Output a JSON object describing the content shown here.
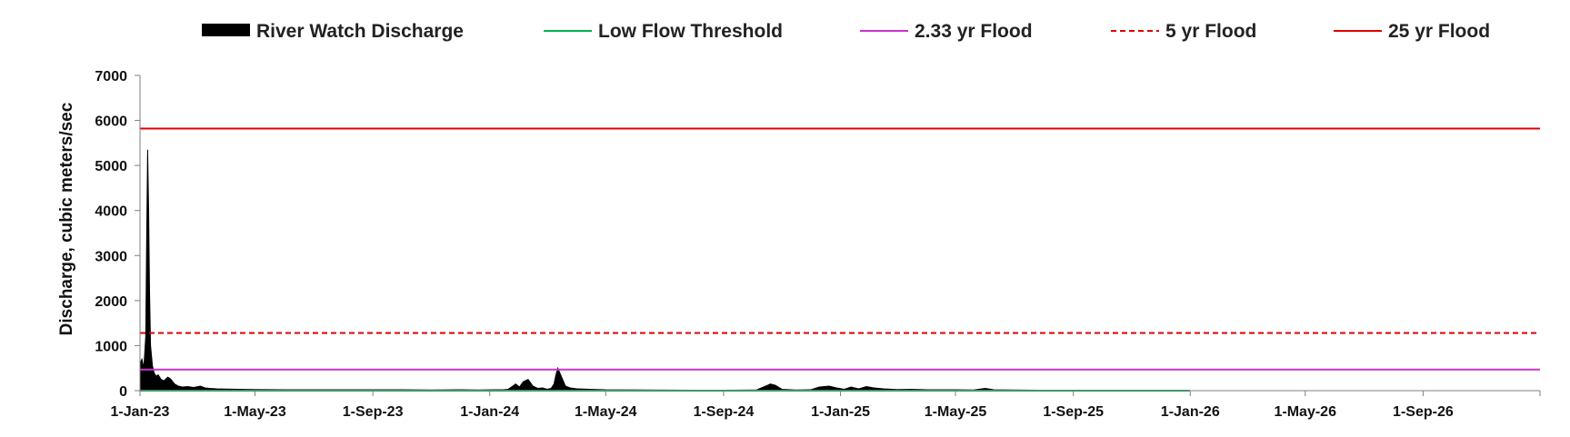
{
  "chart_data": {
    "type": "area",
    "title": "",
    "xlabel": "",
    "ylabel": "Discharge, cubic meters/sec",
    "ylim": [
      0,
      7000
    ],
    "yticks": [
      0,
      1000,
      2000,
      3000,
      4000,
      5000,
      6000,
      7000
    ],
    "xlim": [
      "2023-01-01",
      "2026-12-31"
    ],
    "xtick_labels": [
      "1-Jan-23",
      "1-May-23",
      "1-Sep-23",
      "1-Jan-24",
      "1-May-24",
      "1-Sep-24",
      "1-Jan-25",
      "1-May-25",
      "1-Sep-25",
      "1-Jan-26",
      "1-May-26",
      "1-Sep-26"
    ],
    "xtick_dates": [
      "2023-01-01",
      "2023-05-01",
      "2023-09-01",
      "2024-01-01",
      "2024-05-01",
      "2024-09-01",
      "2025-01-01",
      "2025-05-01",
      "2025-09-01",
      "2026-01-01",
      "2026-05-01",
      "2026-09-01"
    ],
    "grid": false,
    "legend_position": "top",
    "series": [
      {
        "name": "River Watch Discharge",
        "style": "area",
        "color": "#000000",
        "x": [
          "2023-01-01",
          "2023-01-03",
          "2023-01-05",
          "2023-01-07",
          "2023-01-08",
          "2023-01-09",
          "2023-01-10",
          "2023-01-11",
          "2023-01-12",
          "2023-01-14",
          "2023-01-16",
          "2023-01-18",
          "2023-01-20",
          "2023-01-23",
          "2023-01-26",
          "2023-01-30",
          "2023-02-02",
          "2023-02-06",
          "2023-02-10",
          "2023-02-14",
          "2023-02-20",
          "2023-02-26",
          "2023-03-05",
          "2023-03-10",
          "2023-03-15",
          "2023-03-22",
          "2023-04-01",
          "2023-04-15",
          "2023-05-01",
          "2023-06-01",
          "2023-07-01",
          "2023-08-01",
          "2023-09-01",
          "2023-10-01",
          "2023-11-01",
          "2023-12-01",
          "2023-12-20",
          "2024-01-05",
          "2024-01-10",
          "2024-01-15",
          "2024-01-20",
          "2024-01-25",
          "2024-01-28",
          "2024-02-01",
          "2024-02-05",
          "2024-02-10",
          "2024-02-15",
          "2024-02-20",
          "2024-02-25",
          "2024-03-01",
          "2024-03-05",
          "2024-03-08",
          "2024-03-10",
          "2024-03-12",
          "2024-03-15",
          "2024-03-20",
          "2024-03-25",
          "2024-04-01",
          "2024-04-15",
          "2024-05-01",
          "2024-06-15",
          "2024-08-01",
          "2024-09-01",
          "2024-10-05",
          "2024-10-15",
          "2024-10-20",
          "2024-10-25",
          "2024-11-01",
          "2024-11-15",
          "2024-12-01",
          "2024-12-10",
          "2024-12-20",
          "2024-12-28",
          "2025-01-05",
          "2025-01-12",
          "2025-01-20",
          "2025-01-28",
          "2025-02-05",
          "2025-02-15",
          "2025-03-01",
          "2025-03-15",
          "2025-04-01",
          "2025-05-01",
          "2025-05-20",
          "2025-06-01",
          "2025-06-10",
          "2025-07-01",
          "2025-08-01",
          "2025-09-01",
          "2025-10-01",
          "2025-12-01",
          "2025-12-31"
        ],
        "values": [
          600,
          700,
          500,
          1200,
          3500,
          5350,
          4000,
          2200,
          1000,
          550,
          380,
          320,
          350,
          250,
          220,
          300,
          260,
          150,
          100,
          80,
          90,
          70,
          100,
          60,
          50,
          40,
          35,
          30,
          25,
          20,
          20,
          20,
          20,
          20,
          15,
          20,
          15,
          20,
          20,
          20,
          30,
          100,
          150,
          80,
          200,
          250,
          100,
          50,
          60,
          30,
          50,
          150,
          350,
          500,
          350,
          100,
          60,
          40,
          30,
          20,
          15,
          10,
          10,
          15,
          100,
          150,
          120,
          30,
          15,
          20,
          80,
          100,
          60,
          30,
          80,
          40,
          90,
          60,
          40,
          25,
          30,
          20,
          20,
          15,
          50,
          20,
          15,
          10,
          10,
          10,
          10,
          10
        ]
      },
      {
        "name": "Low Flow Threshold",
        "style": "line",
        "color": "#00b050",
        "y": 0,
        "x_range": [
          "2023-01-01",
          "2025-12-31"
        ]
      },
      {
        "name": "2.33 yr Flood",
        "style": "line",
        "color": "#cc33cc",
        "y": 470
      },
      {
        "name": "5 yr Flood",
        "style": "dashed",
        "color": "#e00000",
        "y": 1280
      },
      {
        "name": "25 yr Flood",
        "style": "line",
        "color": "#e00000",
        "y": 5820
      }
    ]
  }
}
